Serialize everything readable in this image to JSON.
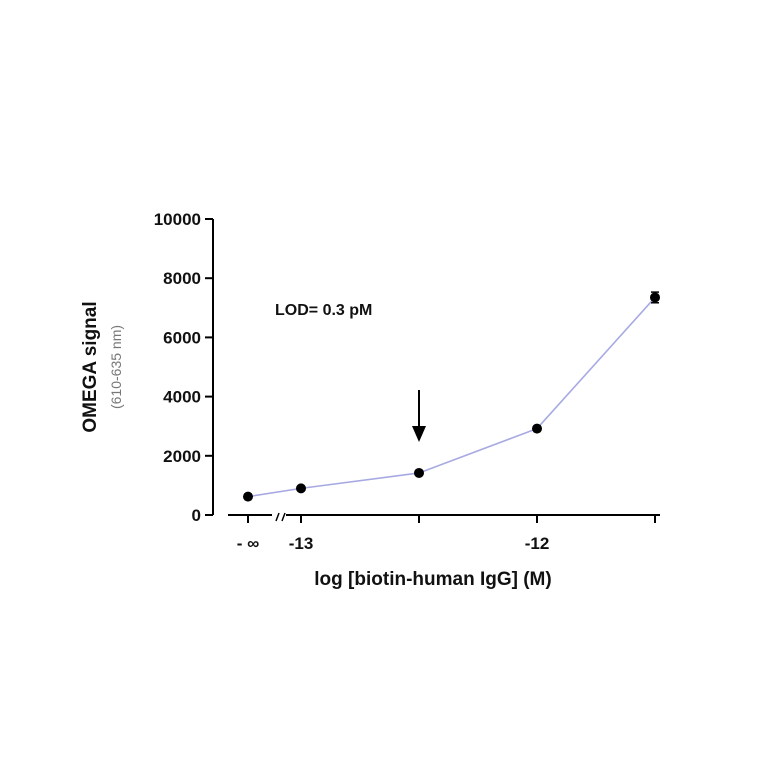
{
  "chart_data": {
    "type": "line",
    "x_log_conc": [
      -13.0,
      -12.5,
      -12.0,
      -11.5
    ],
    "y_neginf": 620,
    "series": [
      {
        "values": [
          900,
          1420,
          2920,
          7350
        ],
        "error": [
          0,
          0,
          0,
          180
        ]
      }
    ],
    "ylabel": "OMEGA signal",
    "ylabel_sub": "(610-635 nm)",
    "xlabel": "log [biotin-human IgG] (M)",
    "yticks": [
      0,
      2000,
      4000,
      6000,
      8000,
      10000
    ],
    "ytick_labels": [
      "0",
      "2000",
      "4000",
      "6000",
      "8000",
      "10000"
    ],
    "xticks": [
      -13.0,
      -12.5,
      -12.0,
      -11.5
    ],
    "xtick_labels": [
      "-13",
      "",
      "-12",
      ""
    ],
    "neginf_label": "- ∞",
    "ylim": [
      0,
      10000
    ],
    "annotation": "LOD= 0.3 pM",
    "arrow_x": -12.5,
    "grid": false,
    "line_color": "#a7a9e3",
    "marker_color": "#000000",
    "axis_color": "#000000"
  }
}
